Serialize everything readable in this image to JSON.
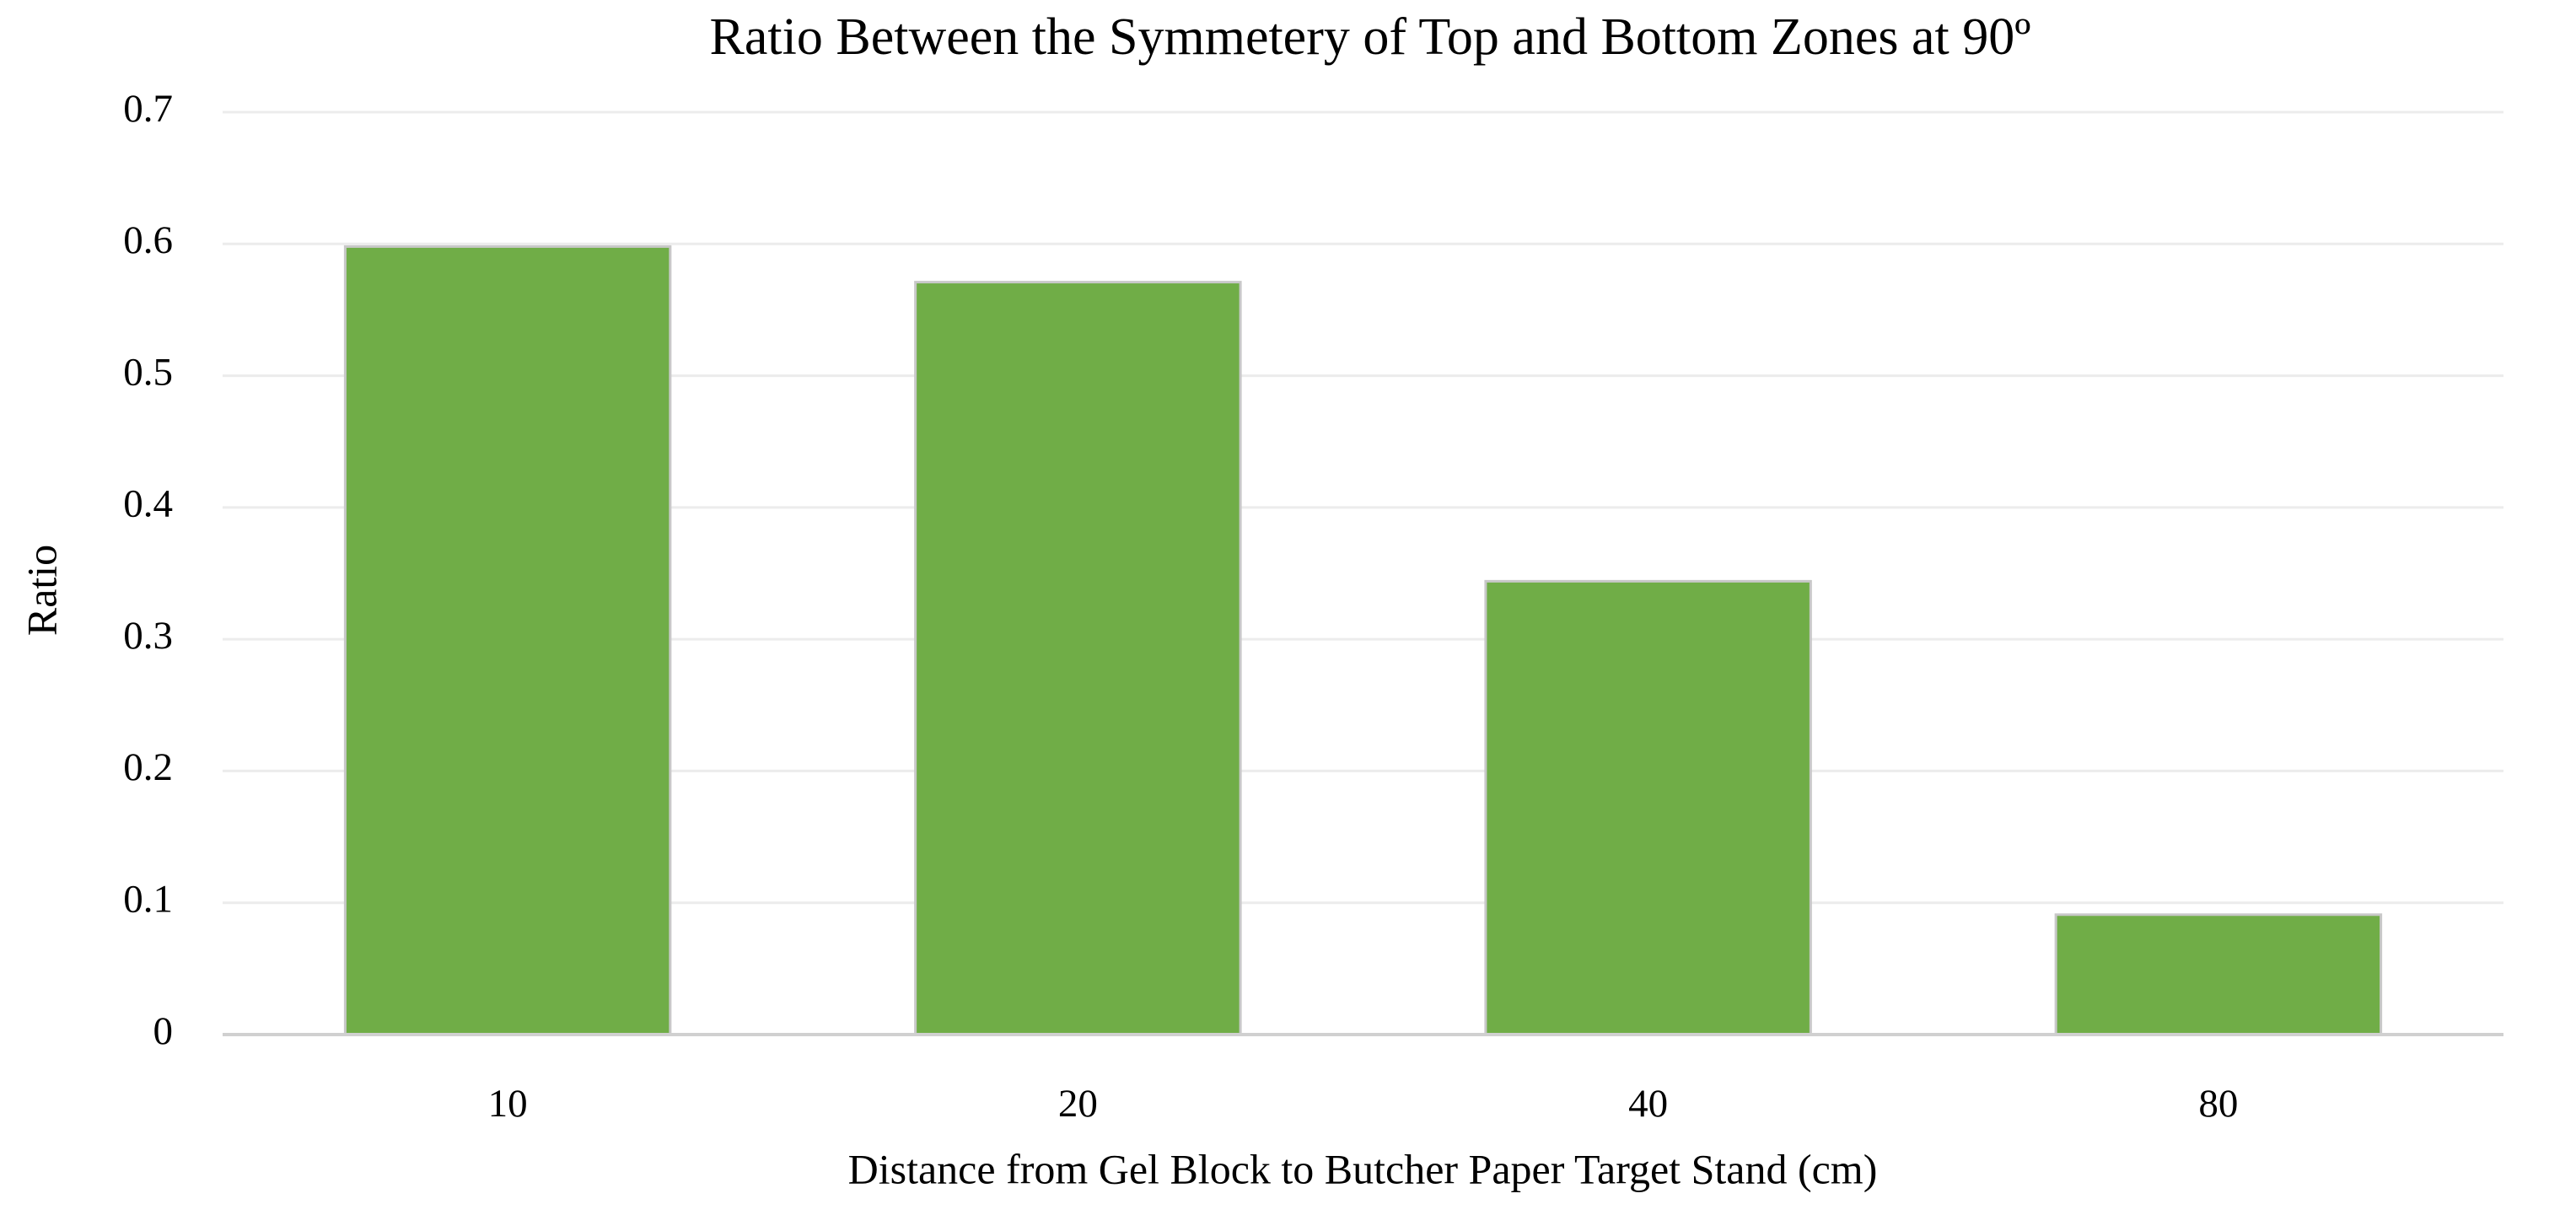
{
  "chart_data": {
    "type": "bar",
    "title": "Ratio Between the Symmetery of Top and Bottom Zones at 90º",
    "x_label": "Distance from Gel Block to Butcher Paper Target Stand (cm)",
    "y_label": "Ratio",
    "categories": [
      "10",
      "20",
      "40",
      "80"
    ],
    "values": [
      0.598,
      0.571,
      0.344,
      0.091
    ],
    "color": "#70ad47",
    "ylim": [
      0,
      0.7
    ],
    "yticks": [
      0,
      0.1,
      0.2,
      0.3,
      0.4,
      0.5,
      0.6,
      0.7
    ],
    "grid": true
  }
}
